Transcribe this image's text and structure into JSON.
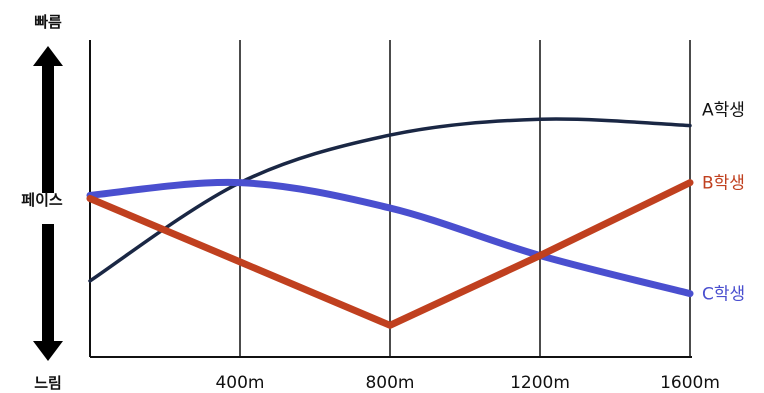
{
  "chart_data": {
    "type": "line",
    "xlabel": "",
    "ylabel": "페이스",
    "y_axis_top_label": "빠름",
    "y_axis_bottom_label": "느림",
    "x": [
      0,
      400,
      800,
      1200,
      1600
    ],
    "x_tick_labels": [
      "400m",
      "800m",
      "1200m",
      "1600m"
    ],
    "x_ticks": [
      400,
      800,
      1200,
      1600
    ],
    "xlim": [
      0,
      1600
    ],
    "ylim": [
      0,
      100
    ],
    "y_scale_note": "relative pace; higher = faster",
    "grid": "vertical",
    "series": [
      {
        "name": "A학생",
        "values": [
          24,
          55,
          70,
          75,
          73
        ],
        "color": "#1a2744"
      },
      {
        "name": "B학생",
        "values": [
          50,
          30,
          10,
          32,
          55
        ],
        "color": "#c0401f"
      },
      {
        "name": "C학생",
        "values": [
          51,
          55,
          47,
          32,
          20
        ],
        "color": "#4a4fcf"
      }
    ]
  }
}
